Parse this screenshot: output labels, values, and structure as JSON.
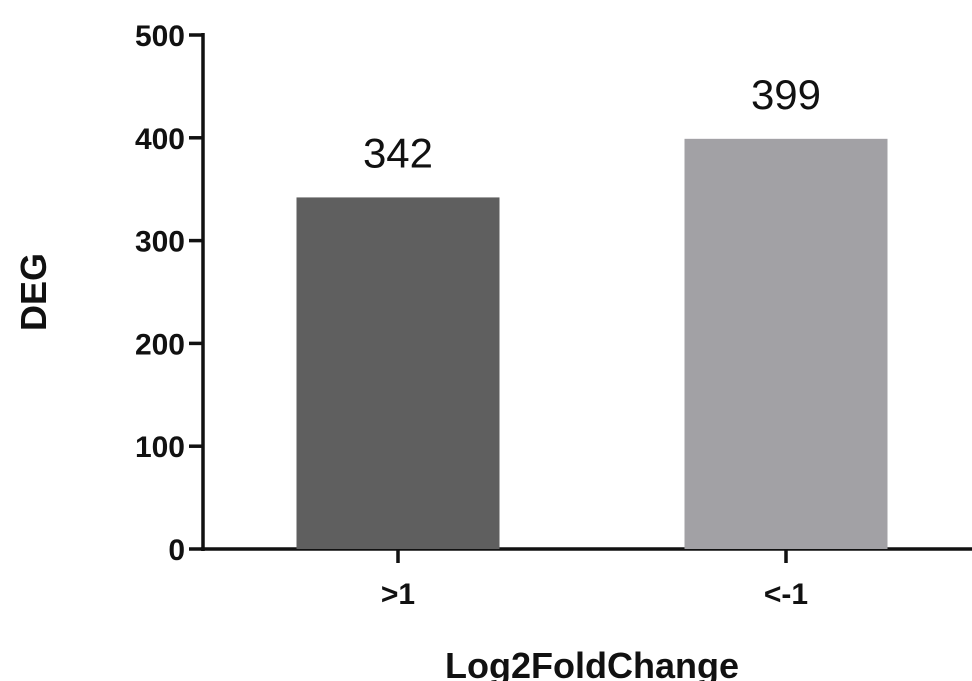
{
  "chart_data": {
    "type": "bar",
    "categories": [
      ">1",
      "<-1"
    ],
    "values": [
      342,
      399
    ],
    "data_labels": [
      "342",
      "399"
    ],
    "bar_colors": [
      "#5f5f5f",
      "#a2a1a5"
    ],
    "xlabel": "Log2FoldChange",
    "ylabel": "DEG",
    "ylim": [
      0,
      500
    ],
    "yticks": [
      0,
      100,
      200,
      300,
      400,
      500
    ],
    "grid": false,
    "legend": "none"
  }
}
